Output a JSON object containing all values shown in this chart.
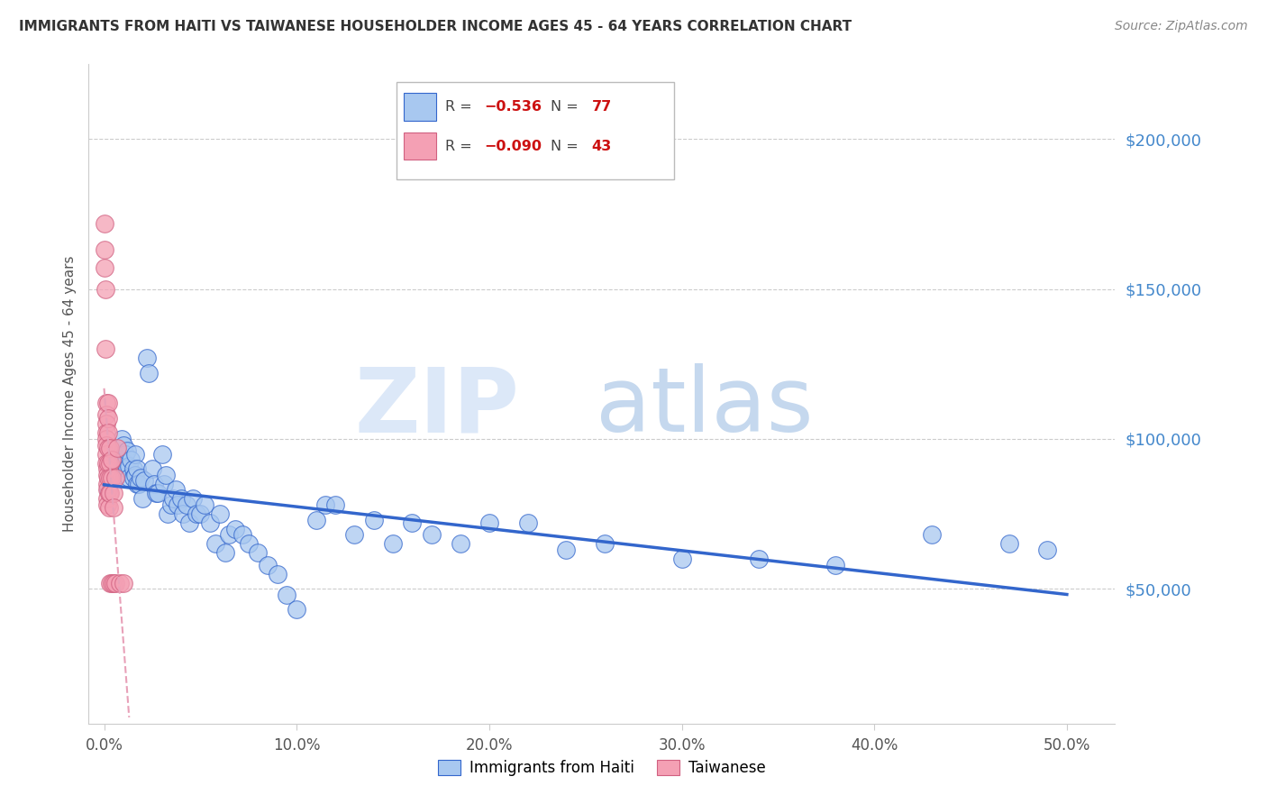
{
  "title": "IMMIGRANTS FROM HAITI VS TAIWANESE HOUSEHOLDER INCOME AGES 45 - 64 YEARS CORRELATION CHART",
  "source": "Source: ZipAtlas.com",
  "ylabel": "Householder Income Ages 45 - 64 years",
  "xlabel_ticks": [
    "0.0%",
    "10.0%",
    "20.0%",
    "30.0%",
    "40.0%",
    "50.0%"
  ],
  "xlabel_vals": [
    0.0,
    0.1,
    0.2,
    0.3,
    0.4,
    0.5
  ],
  "ytick_labels": [
    "$50,000",
    "$100,000",
    "$150,000",
    "$200,000"
  ],
  "ytick_vals": [
    50000,
    100000,
    150000,
    200000
  ],
  "xlim": [
    -0.008,
    0.525
  ],
  "ylim": [
    5000,
    225000
  ],
  "haiti_color": "#a8c8f0",
  "taiwan_color": "#f4a0b4",
  "haiti_line_color": "#3366cc",
  "taiwan_line_color": "#e8a0b8",
  "legend_bottom_haiti": "Immigrants from Haiti",
  "legend_bottom_taiwan": "Taiwanese",
  "haiti_x": [
    0.002,
    0.005,
    0.007,
    0.008,
    0.009,
    0.01,
    0.011,
    0.011,
    0.012,
    0.012,
    0.013,
    0.013,
    0.014,
    0.015,
    0.015,
    0.016,
    0.016,
    0.017,
    0.017,
    0.018,
    0.019,
    0.02,
    0.021,
    0.022,
    0.023,
    0.025,
    0.026,
    0.027,
    0.028,
    0.03,
    0.031,
    0.032,
    0.033,
    0.035,
    0.036,
    0.037,
    0.038,
    0.04,
    0.041,
    0.043,
    0.044,
    0.046,
    0.048,
    0.05,
    0.052,
    0.055,
    0.058,
    0.06,
    0.063,
    0.065,
    0.068,
    0.072,
    0.075,
    0.08,
    0.085,
    0.09,
    0.095,
    0.1,
    0.11,
    0.115,
    0.12,
    0.13,
    0.14,
    0.15,
    0.16,
    0.17,
    0.185,
    0.2,
    0.22,
    0.24,
    0.26,
    0.3,
    0.34,
    0.38,
    0.43,
    0.47,
    0.49
  ],
  "haiti_y": [
    83000,
    95000,
    88000,
    93000,
    100000,
    98000,
    95000,
    92000,
    96000,
    90000,
    91000,
    87000,
    93000,
    90000,
    87000,
    95000,
    88000,
    90000,
    85000,
    85000,
    87000,
    80000,
    86000,
    127000,
    122000,
    90000,
    85000,
    82000,
    82000,
    95000,
    85000,
    88000,
    75000,
    78000,
    80000,
    83000,
    78000,
    80000,
    75000,
    78000,
    72000,
    80000,
    75000,
    75000,
    78000,
    72000,
    65000,
    75000,
    62000,
    68000,
    70000,
    68000,
    65000,
    62000,
    58000,
    55000,
    48000,
    43000,
    73000,
    78000,
    78000,
    68000,
    73000,
    65000,
    72000,
    68000,
    65000,
    72000,
    72000,
    63000,
    65000,
    60000,
    60000,
    58000,
    68000,
    65000,
    63000
  ],
  "taiwan_x": [
    0.0002,
    0.0003,
    0.0004,
    0.0005,
    0.0008,
    0.001,
    0.001,
    0.001,
    0.001,
    0.001,
    0.0012,
    0.0013,
    0.0013,
    0.0014,
    0.0015,
    0.0015,
    0.0016,
    0.0017,
    0.0018,
    0.002,
    0.002,
    0.002,
    0.002,
    0.0022,
    0.0023,
    0.0024,
    0.0025,
    0.003,
    0.003,
    0.003,
    0.003,
    0.0032,
    0.004,
    0.004,
    0.004,
    0.005,
    0.005,
    0.005,
    0.006,
    0.006,
    0.007,
    0.008,
    0.01
  ],
  "taiwan_y": [
    172000,
    163000,
    157000,
    150000,
    130000,
    112000,
    108000,
    105000,
    102000,
    100000,
    98000,
    95000,
    92000,
    90000,
    88000,
    85000,
    83000,
    80000,
    78000,
    112000,
    107000,
    102000,
    97000,
    92000,
    87000,
    82000,
    77000,
    97000,
    92000,
    87000,
    82000,
    52000,
    93000,
    87000,
    52000,
    82000,
    77000,
    52000,
    87000,
    52000,
    97000,
    52000,
    52000
  ]
}
